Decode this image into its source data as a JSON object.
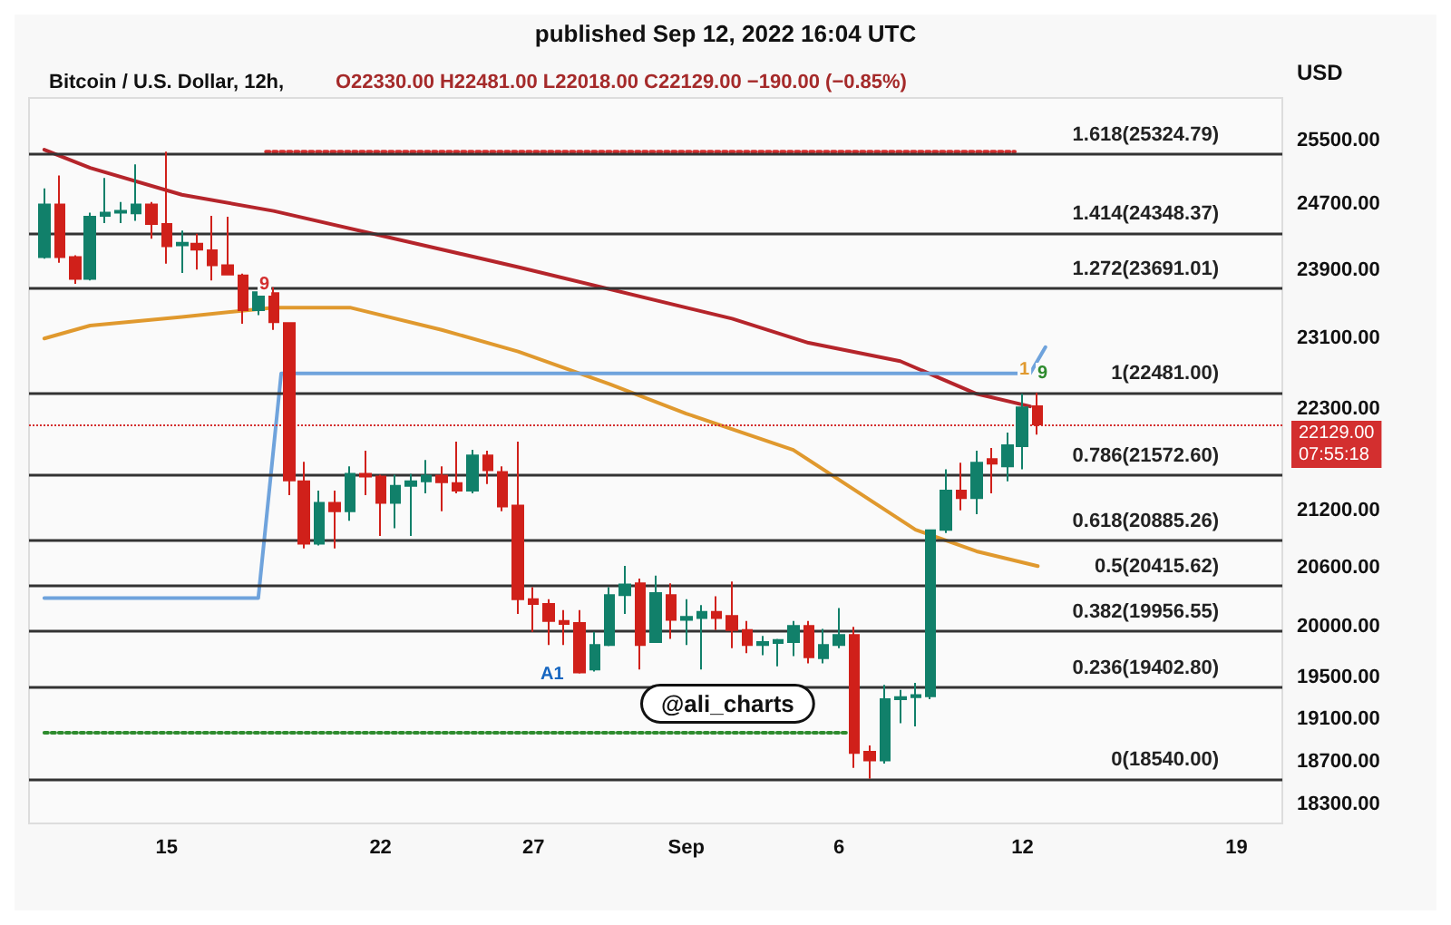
{
  "chart_data": {
    "type": "candlestick",
    "title": "Bitcoin / U.S. Dollar, 12h,",
    "subtitle": "O22330.00 H22481.00 L22018.00 C22129.00 −190.00 (−0.85%)",
    "ylabel": "USD",
    "x": [
      "2022-08-11T00:00",
      "2022-08-11T12:00",
      "2022-08-12T00:00",
      "2022-08-12T12:00",
      "2022-08-13T00:00",
      "2022-08-13T12:00",
      "2022-08-14T00:00",
      "2022-08-14T12:00",
      "2022-08-15T00:00",
      "2022-08-15T12:00",
      "2022-08-16T00:00",
      "2022-08-16T12:00",
      "2022-08-17T00:00",
      "2022-08-17T12:00",
      "2022-08-18T00:00",
      "2022-08-18T12:00",
      "2022-08-19T00:00",
      "2022-08-19T12:00",
      "2022-08-20T00:00",
      "2022-08-20T12:00",
      "2022-08-21T00:00",
      "2022-08-21T12:00",
      "2022-08-22T00:00",
      "2022-08-22T12:00",
      "2022-08-23T00:00",
      "2022-08-23T12:00",
      "2022-08-24T00:00",
      "2022-08-24T12:00",
      "2022-08-25T00:00",
      "2022-08-25T12:00",
      "2022-08-26T00:00",
      "2022-08-26T12:00",
      "2022-08-27T00:00",
      "2022-08-27T12:00",
      "2022-08-28T00:00",
      "2022-08-28T12:00",
      "2022-08-29T00:00",
      "2022-08-29T12:00",
      "2022-08-30T00:00",
      "2022-08-30T12:00",
      "2022-08-31T00:00",
      "2022-08-31T12:00",
      "2022-09-01T00:00",
      "2022-09-01T12:00",
      "2022-09-02T00:00",
      "2022-09-02T12:00",
      "2022-09-03T00:00",
      "2022-09-03T12:00",
      "2022-09-04T00:00",
      "2022-09-04T12:00",
      "2022-09-05T00:00",
      "2022-09-05T12:00",
      "2022-09-06T00:00",
      "2022-09-06T12:00",
      "2022-09-07T00:00",
      "2022-09-07T12:00",
      "2022-09-08T00:00",
      "2022-09-08T12:00",
      "2022-09-09T00:00",
      "2022-09-09T12:00",
      "2022-09-10T00:00",
      "2022-09-10T12:00",
      "2022-09-11T00:00",
      "2022-09-11T12:00",
      "2022-09-12T00:00",
      "2022-09-12T12:00"
    ],
    "ohlc": [
      [
        24060,
        24900,
        24040,
        24700
      ],
      [
        24700,
        25060,
        23990,
        24060
      ],
      [
        24060,
        24080,
        23740,
        23800
      ],
      [
        23800,
        24600,
        23780,
        24550
      ],
      [
        24560,
        25030,
        24470,
        24600
      ],
      [
        24600,
        24730,
        24470,
        24620
      ],
      [
        24590,
        25200,
        24500,
        24700
      ],
      [
        24700,
        24730,
        24280,
        24460
      ],
      [
        24460,
        25360,
        23980,
        24190
      ],
      [
        24200,
        24380,
        23870,
        24230
      ],
      [
        24220,
        24340,
        23910,
        24150
      ],
      [
        24140,
        24560,
        23780,
        23960
      ],
      [
        23960,
        24550,
        23840,
        23850
      ],
      [
        23840,
        23860,
        23270,
        23430
      ],
      [
        23430,
        23680,
        23370,
        23640
      ],
      [
        23630,
        23700,
        23200,
        23290
      ],
      [
        23280,
        23290,
        21360,
        21520
      ],
      [
        21510,
        21720,
        20800,
        20850
      ],
      [
        20850,
        21410,
        20830,
        21280
      ],
      [
        21280,
        21410,
        20800,
        21190
      ],
      [
        21190,
        21670,
        21090,
        21590
      ],
      [
        21590,
        21840,
        21360,
        21560
      ],
      [
        21560,
        21580,
        20930,
        21280
      ],
      [
        21280,
        21580,
        21010,
        21460
      ],
      [
        21460,
        21590,
        20930,
        21510
      ],
      [
        21510,
        21740,
        21380,
        21570
      ],
      [
        21570,
        21670,
        21190,
        21500
      ],
      [
        21490,
        21940,
        21380,
        21410
      ],
      [
        21410,
        21850,
        21380,
        21790
      ],
      [
        21790,
        21840,
        21480,
        21630
      ],
      [
        21610,
        21670,
        21190,
        21240
      ],
      [
        21250,
        21940,
        20130,
        20280
      ],
      [
        20280,
        20400,
        19950,
        20230
      ],
      [
        20230,
        20280,
        19820,
        20060
      ],
      [
        20060,
        20170,
        19820,
        20030
      ],
      [
        20040,
        20170,
        19540,
        19550
      ],
      [
        19580,
        19950,
        19560,
        19820
      ],
      [
        19820,
        20400,
        19810,
        20320
      ],
      [
        20320,
        20620,
        20130,
        20430
      ],
      [
        20440,
        20490,
        19580,
        19820
      ],
      [
        19850,
        20520,
        19840,
        20340
      ],
      [
        20320,
        20440,
        19880,
        20070
      ],
      [
        20070,
        20280,
        19820,
        20100
      ],
      [
        20090,
        20220,
        19580,
        20150
      ],
      [
        20150,
        20310,
        19970,
        20090
      ],
      [
        20110,
        20460,
        19790,
        19970
      ],
      [
        19970,
        20060,
        19740,
        19820
      ],
      [
        19820,
        19910,
        19720,
        19850
      ],
      [
        19840,
        19880,
        19610,
        19870
      ],
      [
        19850,
        20060,
        19710,
        20010
      ],
      [
        20010,
        20060,
        19640,
        19700
      ],
      [
        19690,
        19980,
        19640,
        19820
      ],
      [
        19820,
        20190,
        19790,
        19920
      ],
      [
        19920,
        20000,
        18640,
        18780
      ],
      [
        18790,
        18850,
        18540,
        18710
      ],
      [
        18710,
        19430,
        18680,
        19290
      ],
      [
        19290,
        19380,
        19060,
        19310
      ],
      [
        19310,
        19450,
        19030,
        19330
      ],
      [
        19320,
        21000,
        19290,
        20990
      ],
      [
        20995,
        21640,
        20960,
        21410
      ],
      [
        21410,
        21710,
        21200,
        21330
      ],
      [
        21330,
        21840,
        21160,
        21710
      ],
      [
        21750,
        21870,
        21380,
        21700
      ],
      [
        21670,
        22040,
        21510,
        21900
      ],
      [
        21890,
        22470,
        21640,
        22319
      ],
      [
        22330,
        22481,
        22018,
        22129
      ]
    ],
    "series": [
      {
        "type": "line",
        "color": "#b5252b",
        "x": [
          "2022-08-11T00:00",
          "2022-08-12T12:00",
          "2022-08-15T12:00",
          "2022-08-18T12:00",
          "2022-08-26T12:00",
          "2022-09-02T12:00",
          "2022-09-05T00:00",
          "2022-09-08T00:00",
          "2022-09-10T12:00",
          "2022-09-12T06:00"
        ],
        "values": [
          25385,
          25156,
          24820,
          24620,
          23940,
          23330,
          23050,
          22840,
          22470,
          22330
        ]
      },
      {
        "type": "line",
        "color": "#e0992e",
        "x": [
          "2022-08-11T00:00",
          "2022-08-12T12:00",
          "2022-08-15T12:00",
          "2022-08-18T12:00",
          "2022-08-21T00:00",
          "2022-08-24T00:00",
          "2022-08-26T12:00",
          "2022-08-29T12:00",
          "2022-09-01T00:00",
          "2022-09-04T12:00",
          "2022-09-08T12:00",
          "2022-09-10T12:00",
          "2022-09-12T12:00"
        ],
        "values": [
          23100,
          23250,
          23350,
          23460,
          23460,
          23200,
          22950,
          22580,
          22250,
          21850,
          20995,
          20770,
          20617
        ]
      },
      {
        "type": "line",
        "color": "#6fa3dc",
        "x": [
          "2022-08-11T00:00",
          "2022-08-18T00:00",
          "2022-08-18T18:00",
          "2022-09-12T06:00",
          "2022-09-12T18:00"
        ],
        "values": [
          20290,
          20290,
          22700,
          22700,
          23000
        ]
      },
      {
        "type": "line",
        "color": "#d32f2f",
        "line_style": "dotted",
        "x": [
          "2022-08-18T06:00",
          "2022-09-11T18:00"
        ],
        "values": [
          25360,
          25360
        ]
      },
      {
        "type": "line",
        "color": "#2e8b2e",
        "line_style": "dotted",
        "x": [
          "2022-08-11T00:00",
          "2022-09-06T06:00"
        ],
        "values": [
          18970,
          18970
        ]
      }
    ],
    "ref_lines": [
      {
        "axis": "y",
        "value": 25324.79,
        "label": "1.618(25324.79)",
        "color": "#333333",
        "line_style": "solid"
      },
      {
        "axis": "y",
        "value": 24348.37,
        "label": "1.414(24348.37)",
        "color": "#333333",
        "line_style": "solid"
      },
      {
        "axis": "y",
        "value": 23691.01,
        "label": "1.272(23691.01)",
        "color": "#333333",
        "line_style": "solid"
      },
      {
        "axis": "y",
        "value": 22481,
        "label": "1(22481.00)",
        "color": "#333333",
        "line_style": "solid"
      },
      {
        "axis": "y",
        "value": 21572.6,
        "label": "0.786(21572.60)",
        "color": "#333333",
        "line_style": "solid"
      },
      {
        "axis": "y",
        "value": 20885.26,
        "label": "0.618(20885.26)",
        "color": "#333333",
        "line_style": "solid"
      },
      {
        "axis": "y",
        "value": 20415.62,
        "label": "0.5(20415.62)",
        "color": "#333333",
        "line_style": "solid"
      },
      {
        "axis": "y",
        "value": 19956.55,
        "label": "0.382(19956.55)",
        "color": "#333333",
        "line_style": "solid"
      },
      {
        "axis": "y",
        "value": 19402.8,
        "label": "0.236(19402.80)",
        "color": "#333333",
        "line_style": "solid"
      },
      {
        "axis": "y",
        "value": 18540,
        "label": "0(18540.00)",
        "color": "#333333",
        "line_style": "solid"
      },
      {
        "axis": "y",
        "value": 22129,
        "label": "22129.00\n07:55:18",
        "color": "#d32f2f",
        "line_style": "dotted"
      }
    ],
    "annotations": [
      "published Sep 12, 2022 16:04 UTC",
      "@ali_charts",
      "9",
      "A1",
      "1",
      "9"
    ],
    "xlim": [
      "2022-08-10T12:00",
      "2022-09-20T12:00"
    ],
    "xticks": [
      {
        "value": "2022-08-15T00:00",
        "label": "15"
      },
      {
        "value": "2022-08-22T00:00",
        "label": "22"
      },
      {
        "value": "2022-08-27T00:00",
        "label": "27"
      },
      {
        "value": "2022-09-01T00:00",
        "label": "Sep"
      },
      {
        "value": "2022-09-06T00:00",
        "label": "6"
      },
      {
        "value": "2022-09-12T00:00",
        "label": "12"
      },
      {
        "value": "2022-09-19T00:00",
        "label": "19"
      }
    ],
    "ylim": [
      18130,
      26050
    ],
    "yticks": [
      {
        "value": 25500,
        "label": "25500.00"
      },
      {
        "value": 24700,
        "label": "24700.00"
      },
      {
        "value": 23900,
        "label": "23900.00"
      },
      {
        "value": 23100,
        "label": "23100.00"
      },
      {
        "value": 22300,
        "label": "22300.00"
      },
      {
        "value": 21200,
        "label": "21200.00"
      },
      {
        "value": 20600,
        "label": "20600.00"
      },
      {
        "value": 20000,
        "label": "20000.00"
      },
      {
        "value": 19500,
        "label": "19500.00"
      },
      {
        "value": 19100,
        "label": "19100.00"
      },
      {
        "value": 18700,
        "label": "18700.00"
      },
      {
        "value": 18300,
        "label": "18300.00"
      }
    ],
    "log": "y",
    "grid": false,
    "marker": "none"
  }
}
